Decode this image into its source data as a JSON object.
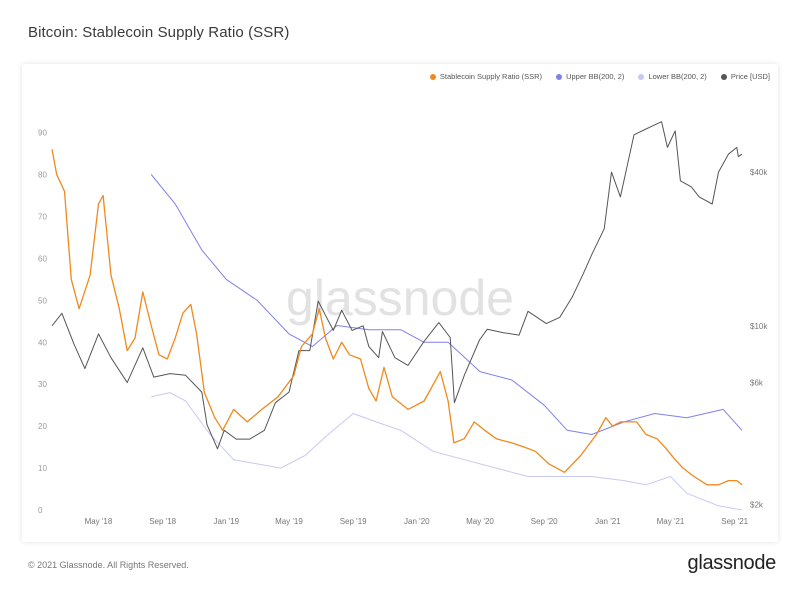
{
  "title": "Bitcoin: Stablecoin Supply Ratio (SSR)",
  "footer": {
    "copyright": "© 2021 Glassnode. All Rights Reserved.",
    "logo": "glassnode"
  },
  "watermark": "glassnode",
  "colors": {
    "ssr": "#f0891e",
    "upper": "#8080ee",
    "lower": "#c8c8f4",
    "price": "#555555"
  },
  "chart_data": {
    "type": "line",
    "title": "Bitcoin: Stablecoin Supply Ratio (SSR)",
    "legend_position": "top-right",
    "grid": false,
    "x_ticks": [
      "May '18",
      "Sep '18",
      "Jan '19",
      "May '19",
      "Sep '19",
      "Jan '20",
      "May '20",
      "Sep '20",
      "Jan '21",
      "May '21",
      "Sep '21"
    ],
    "x_domain": [
      "2018-02-01",
      "2021-09-15"
    ],
    "y_left": {
      "ticks": [
        0,
        10,
        20,
        30,
        40,
        50,
        60,
        70,
        80,
        90
      ],
      "range": [
        0,
        93
      ]
    },
    "y_right": {
      "ticks": [
        "$2k",
        "$6k",
        "$10k",
        "$40k"
      ],
      "tick_values": [
        2000,
        6000,
        10000,
        40000
      ],
      "scale": "log",
      "range": [
        1900,
        64000
      ]
    },
    "series": [
      {
        "name": "Stablecoin Supply Ratio (SSR)",
        "axis": "left",
        "points": [
          [
            "2018-02-01",
            86
          ],
          [
            "2018-02-10",
            80
          ],
          [
            "2018-02-25",
            76
          ],
          [
            "2018-03-10",
            55
          ],
          [
            "2018-03-25",
            48
          ],
          [
            "2018-04-15",
            56
          ],
          [
            "2018-05-01",
            73
          ],
          [
            "2018-05-10",
            75
          ],
          [
            "2018-05-25",
            56
          ],
          [
            "2018-06-10",
            48
          ],
          [
            "2018-06-25",
            38
          ],
          [
            "2018-07-10",
            41
          ],
          [
            "2018-07-25",
            52
          ],
          [
            "2018-08-10",
            44
          ],
          [
            "2018-08-25",
            37
          ],
          [
            "2018-09-10",
            36
          ],
          [
            "2018-09-25",
            41
          ],
          [
            "2018-10-10",
            47
          ],
          [
            "2018-10-25",
            49
          ],
          [
            "2018-11-05",
            42
          ],
          [
            "2018-11-20",
            28
          ],
          [
            "2018-12-10",
            22
          ],
          [
            "2018-12-25",
            19
          ],
          [
            "2019-01-15",
            24
          ],
          [
            "2019-02-10",
            21
          ],
          [
            "2019-03-10",
            24
          ],
          [
            "2019-04-10",
            27
          ],
          [
            "2019-05-10",
            32
          ],
          [
            "2019-05-25",
            39
          ],
          [
            "2019-06-15",
            42
          ],
          [
            "2019-06-28",
            48
          ],
          [
            "2019-07-10",
            41
          ],
          [
            "2019-07-25",
            36
          ],
          [
            "2019-08-10",
            40
          ],
          [
            "2019-08-25",
            37
          ],
          [
            "2019-09-15",
            36
          ],
          [
            "2019-10-01",
            29
          ],
          [
            "2019-10-15",
            26
          ],
          [
            "2019-10-30",
            34
          ],
          [
            "2019-11-15",
            27
          ],
          [
            "2019-12-15",
            24
          ],
          [
            "2020-01-15",
            26
          ],
          [
            "2020-02-15",
            33
          ],
          [
            "2020-03-01",
            26
          ],
          [
            "2020-03-12",
            16
          ],
          [
            "2020-04-01",
            17
          ],
          [
            "2020-04-20",
            21
          ],
          [
            "2020-05-10",
            19
          ],
          [
            "2020-06-01",
            17
          ],
          [
            "2020-07-01",
            16
          ],
          [
            "2020-07-25",
            15
          ],
          [
            "2020-08-15",
            14
          ],
          [
            "2020-09-10",
            11
          ],
          [
            "2020-10-10",
            9
          ],
          [
            "2020-11-10",
            13
          ],
          [
            "2020-12-10",
            18
          ],
          [
            "2020-12-28",
            22
          ],
          [
            "2021-01-10",
            20
          ],
          [
            "2021-01-25",
            21
          ],
          [
            "2021-02-10",
            21
          ],
          [
            "2021-02-25",
            21
          ],
          [
            "2021-03-15",
            18
          ],
          [
            "2021-04-05",
            17
          ],
          [
            "2021-04-20",
            15
          ],
          [
            "2021-05-10",
            12
          ],
          [
            "2021-05-25",
            10
          ],
          [
            "2021-06-15",
            8
          ],
          [
            "2021-07-10",
            6
          ],
          [
            "2021-08-01",
            6
          ],
          [
            "2021-08-20",
            7
          ],
          [
            "2021-09-05",
            7
          ],
          [
            "2021-09-15",
            6
          ]
        ]
      },
      {
        "name": "Upper BB(200, 2)",
        "axis": "left",
        "points": [
          [
            "2018-08-10",
            80
          ],
          [
            "2018-09-25",
            73
          ],
          [
            "2018-11-15",
            62
          ],
          [
            "2019-01-01",
            55
          ],
          [
            "2019-03-01",
            50
          ],
          [
            "2019-05-01",
            42
          ],
          [
            "2019-06-15",
            39
          ],
          [
            "2019-08-01",
            44
          ],
          [
            "2019-10-01",
            43
          ],
          [
            "2019-12-01",
            43
          ],
          [
            "2020-01-15",
            40
          ],
          [
            "2020-03-01",
            40
          ],
          [
            "2020-05-01",
            33
          ],
          [
            "2020-07-01",
            31
          ],
          [
            "2020-09-01",
            25
          ],
          [
            "2020-10-15",
            19
          ],
          [
            "2020-12-01",
            18
          ],
          [
            "2021-02-01",
            21
          ],
          [
            "2021-04-01",
            23
          ],
          [
            "2021-06-01",
            22
          ],
          [
            "2021-08-10",
            24
          ],
          [
            "2021-09-15",
            19
          ]
        ]
      },
      {
        "name": "Lower BB(200, 2)",
        "axis": "left",
        "points": [
          [
            "2018-08-10",
            27
          ],
          [
            "2018-09-15",
            28
          ],
          [
            "2018-10-15",
            26
          ],
          [
            "2018-12-01",
            18
          ],
          [
            "2019-01-15",
            12
          ],
          [
            "2019-03-01",
            11
          ],
          [
            "2019-04-15",
            10
          ],
          [
            "2019-06-01",
            13
          ],
          [
            "2019-07-15",
            18
          ],
          [
            "2019-09-01",
            23
          ],
          [
            "2019-10-15",
            21
          ],
          [
            "2019-12-01",
            19
          ],
          [
            "2020-02-01",
            14
          ],
          [
            "2020-04-01",
            12
          ],
          [
            "2020-06-01",
            10
          ],
          [
            "2020-08-01",
            8
          ],
          [
            "2020-10-01",
            8
          ],
          [
            "2020-12-01",
            8
          ],
          [
            "2021-02-01",
            7
          ],
          [
            "2021-03-15",
            6
          ],
          [
            "2021-05-01",
            8
          ],
          [
            "2021-06-01",
            4
          ],
          [
            "2021-08-01",
            1
          ],
          [
            "2021-09-15",
            0
          ]
        ]
      },
      {
        "name": "Price [USD]",
        "axis": "right",
        "points": [
          [
            "2018-02-01",
            10000
          ],
          [
            "2018-02-20",
            11200
          ],
          [
            "2018-03-15",
            8500
          ],
          [
            "2018-04-05",
            6800
          ],
          [
            "2018-05-01",
            9300
          ],
          [
            "2018-05-25",
            7500
          ],
          [
            "2018-06-25",
            6000
          ],
          [
            "2018-07-25",
            8200
          ],
          [
            "2018-08-15",
            6300
          ],
          [
            "2018-09-15",
            6500
          ],
          [
            "2018-10-15",
            6400
          ],
          [
            "2018-11-15",
            5500
          ],
          [
            "2018-11-25",
            4100
          ],
          [
            "2018-12-15",
            3300
          ],
          [
            "2018-12-28",
            3900
          ],
          [
            "2019-01-20",
            3600
          ],
          [
            "2019-02-15",
            3600
          ],
          [
            "2019-03-15",
            3900
          ],
          [
            "2019-04-05",
            5000
          ],
          [
            "2019-05-01",
            5500
          ],
          [
            "2019-05-20",
            8000
          ],
          [
            "2019-06-10",
            8000
          ],
          [
            "2019-06-26",
            12500
          ],
          [
            "2019-07-10",
            11000
          ],
          [
            "2019-07-25",
            9600
          ],
          [
            "2019-08-10",
            11500
          ],
          [
            "2019-08-30",
            9600
          ],
          [
            "2019-09-20",
            10000
          ],
          [
            "2019-10-01",
            8300
          ],
          [
            "2019-10-20",
            7500
          ],
          [
            "2019-10-27",
            9500
          ],
          [
            "2019-11-20",
            7500
          ],
          [
            "2019-12-15",
            7000
          ],
          [
            "2020-01-15",
            8700
          ],
          [
            "2020-02-12",
            10300
          ],
          [
            "2020-03-05",
            9000
          ],
          [
            "2020-03-13",
            5000
          ],
          [
            "2020-04-01",
            6400
          ],
          [
            "2020-04-30",
            8800
          ],
          [
            "2020-05-15",
            9700
          ],
          [
            "2020-06-15",
            9400
          ],
          [
            "2020-07-15",
            9200
          ],
          [
            "2020-08-01",
            11400
          ],
          [
            "2020-09-05",
            10200
          ],
          [
            "2020-10-01",
            10800
          ],
          [
            "2020-10-25",
            13000
          ],
          [
            "2020-11-15",
            16000
          ],
          [
            "2020-12-01",
            19000
          ],
          [
            "2020-12-25",
            24000
          ],
          [
            "2021-01-08",
            40000
          ],
          [
            "2021-01-25",
            32000
          ],
          [
            "2021-02-20",
            56000
          ],
          [
            "2021-03-15",
            59000
          ],
          [
            "2021-04-14",
            63000
          ],
          [
            "2021-04-25",
            50000
          ],
          [
            "2021-05-10",
            58000
          ],
          [
            "2021-05-20",
            37000
          ],
          [
            "2021-06-10",
            35000
          ],
          [
            "2021-06-25",
            32000
          ],
          [
            "2021-07-20",
            30000
          ],
          [
            "2021-08-01",
            40000
          ],
          [
            "2021-08-20",
            47000
          ],
          [
            "2021-09-05",
            50000
          ],
          [
            "2021-09-08",
            46000
          ],
          [
            "2021-09-15",
            47000
          ]
        ]
      }
    ]
  }
}
